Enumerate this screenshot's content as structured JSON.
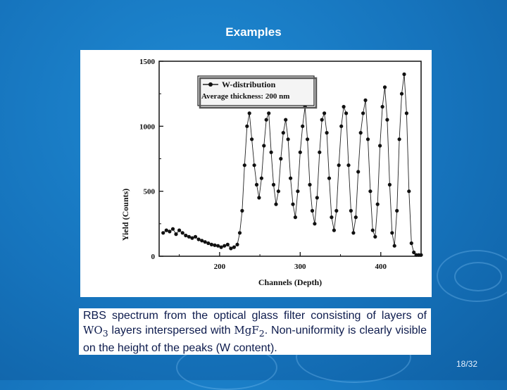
{
  "slide": {
    "title": "Examples",
    "page_number": "18/32"
  },
  "caption": {
    "part1": "RBS spectrum from the optical glass filter consisting of layers of ",
    "wo3": "WO",
    "wo3_sub": "3",
    "part2": " layers interspersed with ",
    "mgf2": "MgF",
    "mgf2_sub": "2",
    "part3": ". Non-uniformity is clearly visible on the height of the peaks (W content)."
  },
  "chart_data": {
    "type": "line",
    "title": "",
    "xlabel": "Channels (Depth)",
    "ylabel": "Yield (Counts)",
    "xlim": [
      125,
      450
    ],
    "ylim": [
      0,
      1500
    ],
    "x_ticks": [
      200,
      300,
      400
    ],
    "y_ticks": [
      0,
      500,
      1000,
      1500
    ],
    "grid": false,
    "legend": {
      "position": "top-left",
      "entries": [
        "W-distribution",
        "Average thickness: 200 nm"
      ]
    },
    "series": [
      {
        "name": "W-distribution",
        "marker": "filled-circle",
        "x": [
          130,
          134,
          138,
          142,
          146,
          150,
          154,
          158,
          162,
          166,
          170,
          174,
          178,
          182,
          186,
          190,
          194,
          198,
          202,
          206,
          210,
          214,
          218,
          222,
          225,
          228,
          231,
          234,
          237,
          240,
          243,
          246,
          249,
          252,
          255,
          258,
          261,
          264,
          267,
          270,
          273,
          276,
          279,
          282,
          285,
          288,
          291,
          294,
          297,
          300,
          303,
          306,
          309,
          312,
          315,
          318,
          321,
          324,
          327,
          330,
          333,
          336,
          339,
          342,
          345,
          348,
          351,
          354,
          357,
          360,
          363,
          366,
          369,
          372,
          375,
          378,
          381,
          384,
          387,
          390,
          393,
          396,
          399,
          402,
          405,
          408,
          411,
          414,
          417,
          420,
          423,
          426,
          429,
          432,
          435,
          438,
          441,
          444,
          447,
          450
        ],
        "y": [
          180,
          200,
          190,
          210,
          170,
          200,
          180,
          160,
          150,
          140,
          150,
          130,
          120,
          110,
          100,
          90,
          85,
          80,
          70,
          80,
          90,
          60,
          70,
          90,
          180,
          350,
          700,
          1000,
          1100,
          900,
          700,
          550,
          450,
          600,
          850,
          1050,
          1100,
          800,
          550,
          400,
          500,
          750,
          950,
          1050,
          900,
          600,
          400,
          300,
          500,
          800,
          1000,
          1150,
          900,
          550,
          350,
          250,
          450,
          800,
          1050,
          1100,
          950,
          600,
          300,
          200,
          350,
          700,
          1000,
          1150,
          1100,
          700,
          350,
          180,
          300,
          650,
          950,
          1100,
          1200,
          900,
          500,
          200,
          150,
          400,
          850,
          1150,
          1300,
          1050,
          550,
          180,
          80,
          350,
          900,
          1250,
          1400,
          1100,
          500,
          100,
          30,
          10,
          10,
          10
        ]
      }
    ]
  }
}
